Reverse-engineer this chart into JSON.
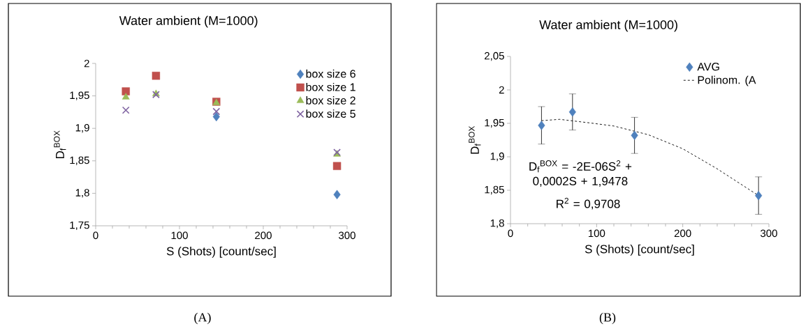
{
  "chart_data": [
    {
      "type": "scatter",
      "title": "Water ambient (M=1000)",
      "xlabel": "S (Shots) [count/sec]",
      "ylabel": "D$_{f}$$^{BOX}$",
      "x": [
        36,
        72,
        144,
        288
      ],
      "series": [
        {
          "name": "box size 6",
          "color": "#4f81bd",
          "marker": "diamond",
          "values": [
            null,
            null,
            1.918,
            1.798
          ]
        },
        {
          "name": "box size 1",
          "color": "#c0504d",
          "marker": "square",
          "values": [
            1.957,
            1.981,
            1.941,
            1.842
          ]
        },
        {
          "name": "box size 2",
          "color": "#9bbb59",
          "marker": "triangle",
          "values": [
            1.948,
            1.953,
            1.939,
            1.86
          ]
        },
        {
          "name": "box size 5",
          "color": "#8064a2",
          "marker": "cross",
          "values": [
            1.928,
            1.952,
            1.926,
            1.863
          ]
        }
      ],
      "xlim": [
        0,
        300
      ],
      "xticks": [
        0,
        100,
        200,
        300
      ],
      "ylim": [
        1.75,
        2
      ],
      "yticks": [
        {
          "value": 1.75,
          "label": "1,75"
        },
        {
          "value": 1.8,
          "label": "1,8"
        },
        {
          "value": 1.85,
          "label": "1,85"
        },
        {
          "value": 1.9,
          "label": "1,9"
        },
        {
          "value": 1.95,
          "label": "1,95"
        },
        2
      ],
      "legend": "top right",
      "annotations": [
        "(A)"
      ]
    },
    {
      "type": "scatter",
      "title": "Water ambient (M=1000)",
      "xlabel": "S (Shots) [count/sec]",
      "ylabel": "D$_{f}$$^{BOX}$",
      "x": [
        36,
        72,
        144,
        288
      ],
      "series": [
        {
          "name": "AVG",
          "color": "#4f81bd",
          "marker": "diamond",
          "values": [
            1.947,
            1.967,
            1.932,
            1.842
          ],
          "errors": [
            0.028,
            0.027,
            0.027,
            0.028
          ]
        },
        {
          "name": "Polinom. (A",
          "type": "line",
          "color": "#000000",
          "marker": "none",
          "line_style": "dashed",
          "x": [
            36,
            57,
            90,
            120,
            160,
            200,
            240,
            288
          ],
          "values": [
            1.954,
            1.956,
            1.951,
            1.946,
            1.933,
            1.912,
            1.882,
            1.842
          ]
        }
      ],
      "xlim": [
        0,
        300
      ],
      "xticks": [
        0,
        100,
        200,
        300
      ],
      "ylim": [
        1.8,
        2.05
      ],
      "yticks": [
        {
          "value": 1.8,
          "label": "1,8"
        },
        {
          "value": 1.85,
          "label": "1,85"
        },
        {
          "value": 1.9,
          "label": "1,9"
        },
        {
          "value": 1.95,
          "label": "1,95"
        },
        2,
        {
          "value": 2.05,
          "label": "2,05"
        }
      ],
      "legend": "top right",
      "annotations": [
        "D$_{f}$$^{BOX}$ = -2E-06S$^{2}$ + 0,0002S + 1,9478",
        "R$^{2}$ = 0,9708",
        "(B)"
      ]
    }
  ]
}
